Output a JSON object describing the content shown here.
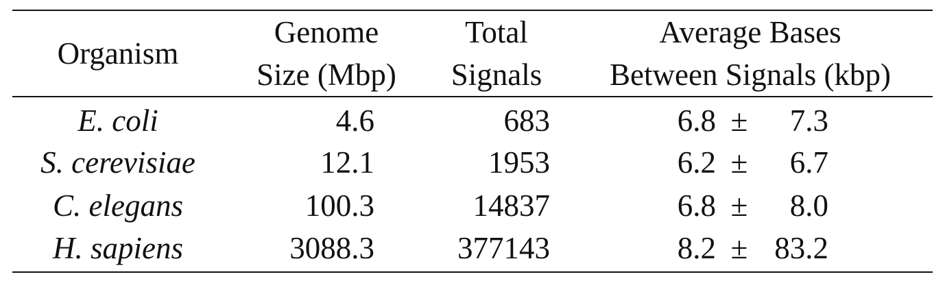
{
  "table": {
    "headers": {
      "organism": "Organism",
      "genome_line1": "Genome",
      "genome_line2": "Size (Mbp)",
      "signals_line1": "Total",
      "signals_line2": "Signals",
      "avg_line1": "Average Bases",
      "avg_line2": "Between Signals (kbp)"
    },
    "pm_symbol": "±",
    "rows": [
      {
        "organism": "E. coli",
        "genome_size": "4.6",
        "total_signals": "683",
        "avg_mean": "6.8",
        "avg_sd": "7.3"
      },
      {
        "organism": "S. cerevisiae",
        "genome_size": "12.1",
        "total_signals": "1953",
        "avg_mean": "6.2",
        "avg_sd": "6.7"
      },
      {
        "organism": "C. elegans",
        "genome_size": "100.3",
        "total_signals": "14837",
        "avg_mean": "6.8",
        "avg_sd": "8.0"
      },
      {
        "organism": "H. sapiens",
        "genome_size": "3088.3",
        "total_signals": "377143",
        "avg_mean": "8.2",
        "avg_sd": "83.2"
      }
    ]
  }
}
